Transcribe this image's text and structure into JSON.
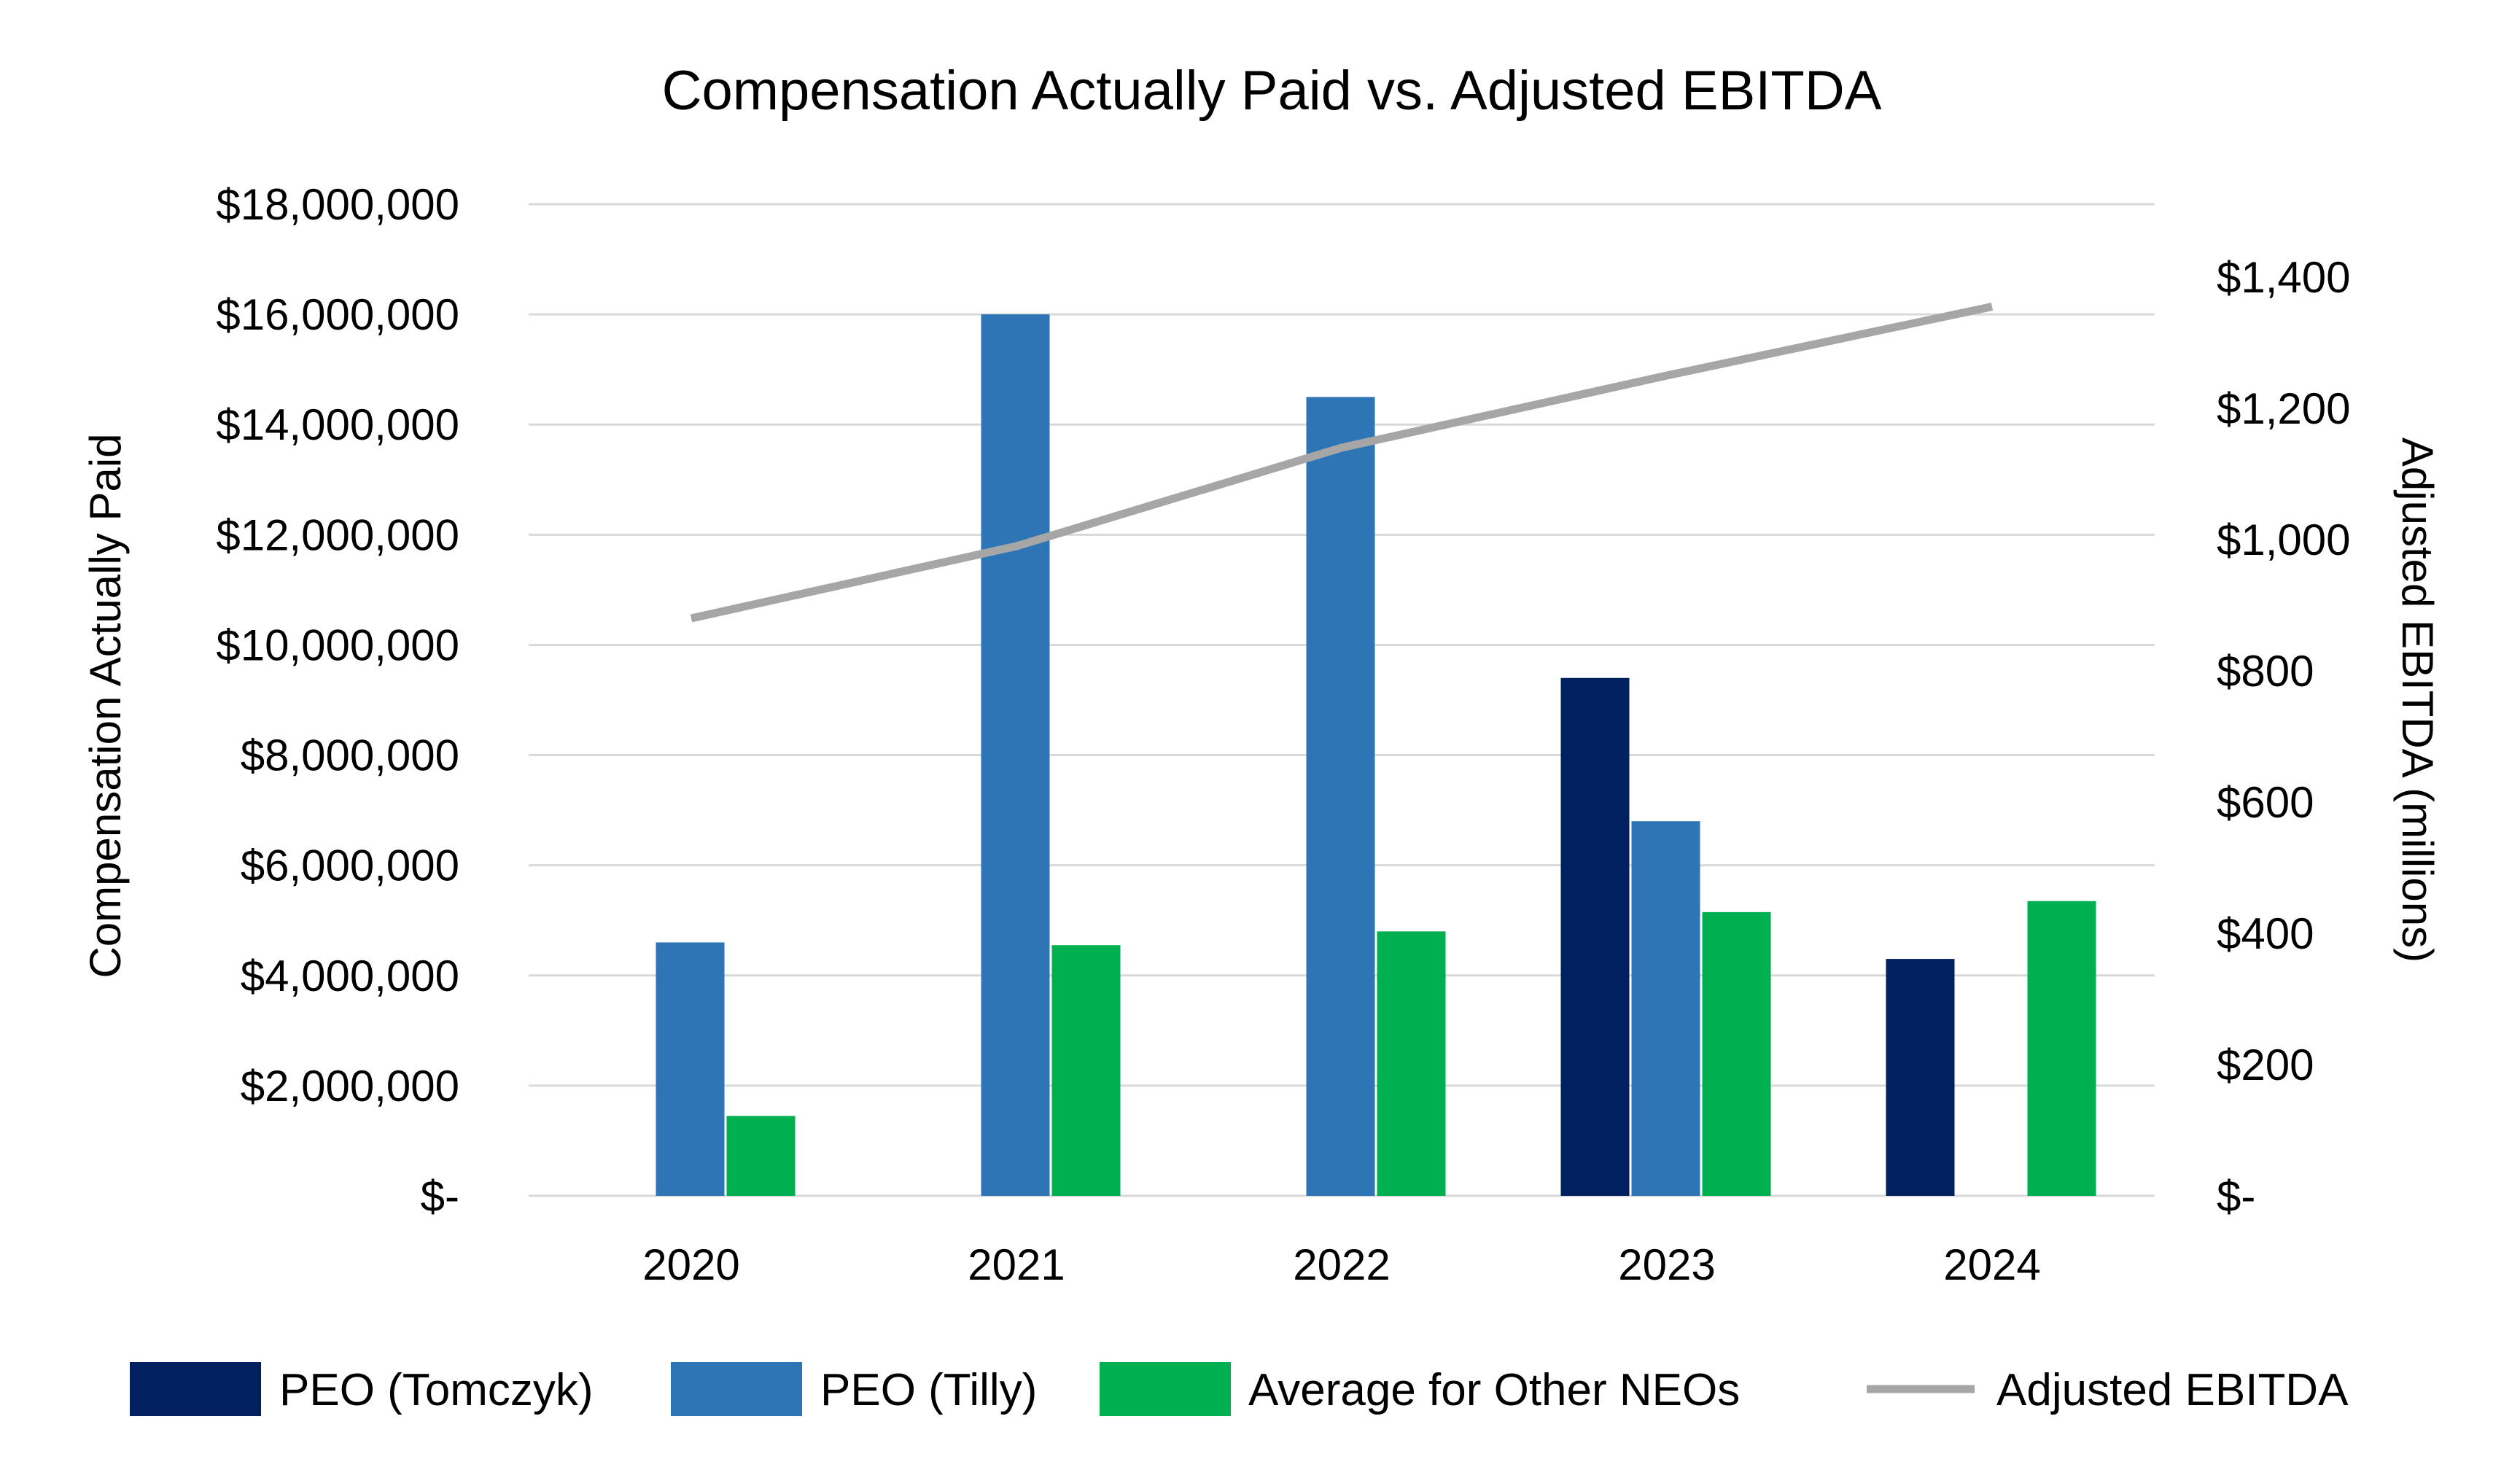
{
  "chart_data": {
    "type": "bar",
    "title": "Compensation Actually Paid vs. Adjusted EBITDA",
    "categories": [
      "2020",
      "2021",
      "2022",
      "2023",
      "2024"
    ],
    "ylabel": "Compensation Actually Paid",
    "ylabel_right": "Adjusted EBITDA (millions)",
    "ylim": [
      0,
      18000000
    ],
    "ylim_right": [
      0,
      1400
    ],
    "y_ticks": [
      "$-",
      "$2,000,000",
      "$4,000,000",
      "$6,000,000",
      "$8,000,000",
      "$10,000,000",
      "$12,000,000",
      "$14,000,000",
      "$16,000,000",
      "$18,000,000"
    ],
    "y_tick_values": [
      0,
      2000000,
      4000000,
      6000000,
      8000000,
      10000000,
      12000000,
      14000000,
      16000000,
      18000000
    ],
    "y_right_ticks": [
      "$-",
      "$200",
      "$400",
      "$600",
      "$800",
      "$1,000",
      "$1,200",
      "$1,400"
    ],
    "y_right_tick_values": [
      0,
      200,
      400,
      600,
      800,
      1000,
      1200,
      1400
    ],
    "grid": true,
    "legend_position": "bottom",
    "series": [
      {
        "name": "PEO (Tomczyk)",
        "color": "#002060",
        "type": "bar",
        "axis": "left",
        "values": [
          null,
          null,
          null,
          9400000,
          4300000
        ]
      },
      {
        "name": "PEO (Tilly)",
        "color": "#2E75B6",
        "type": "bar",
        "axis": "left",
        "values": [
          4600000,
          16000000,
          14500000,
          6800000,
          null
        ]
      },
      {
        "name": "Average for Other NEOs",
        "color": "#00B050",
        "type": "bar",
        "axis": "left",
        "values": [
          1450000,
          4550000,
          4800000,
          5150000,
          5350000
        ]
      },
      {
        "name": "Adjusted EBITDA",
        "color": "#A6A6A6",
        "type": "line",
        "axis": "right",
        "values": [
          880,
          990,
          1140,
          1250,
          1355
        ]
      }
    ]
  }
}
